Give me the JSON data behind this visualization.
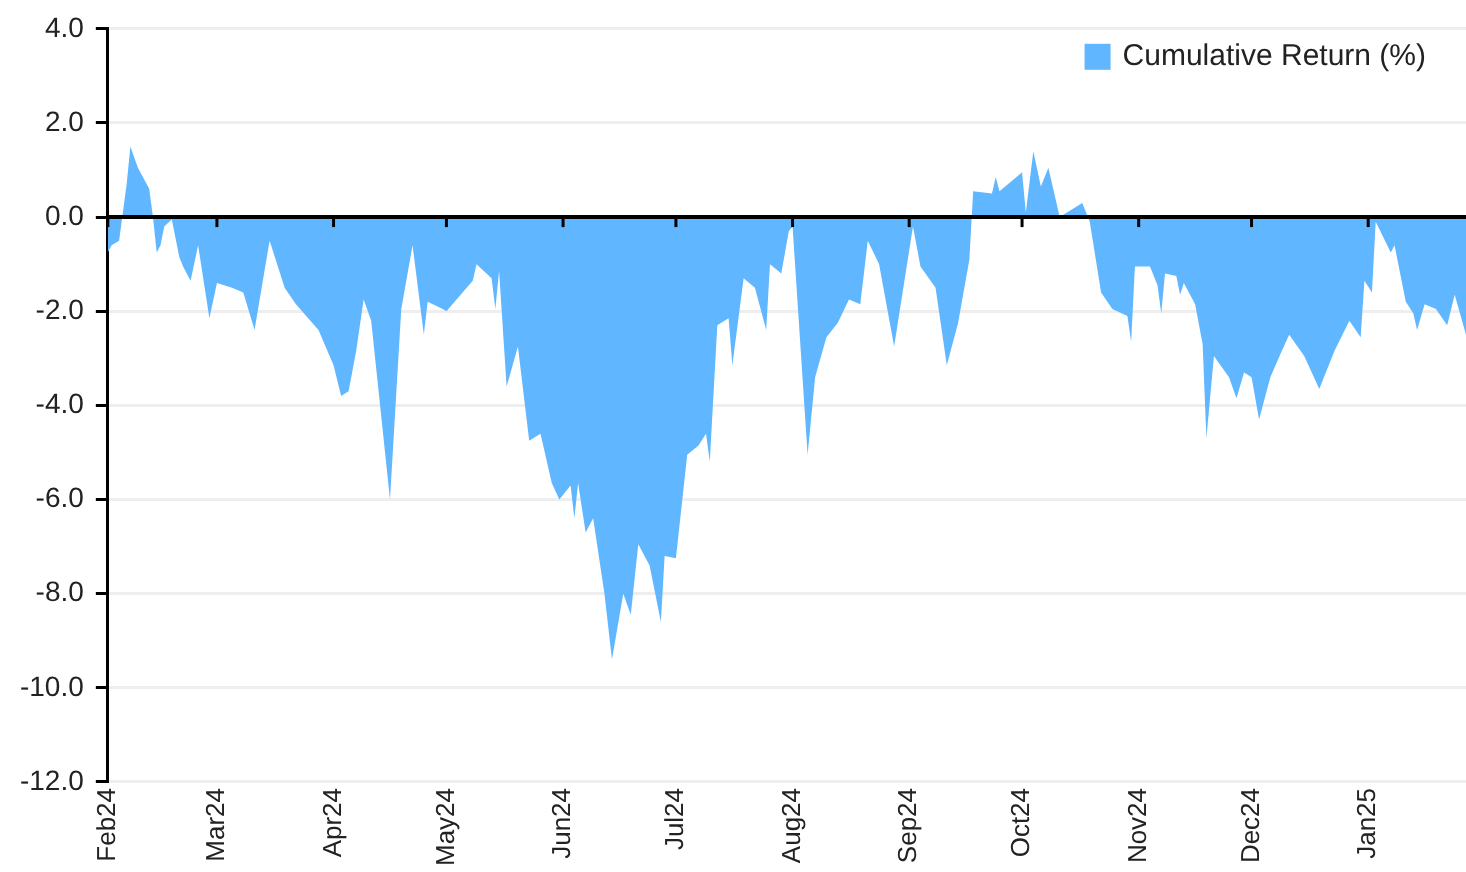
{
  "chart_data": {
    "type": "area",
    "legend": "top right",
    "grid": "y",
    "x": [
      "2024-02-01",
      "2024-02-02",
      "2024-02-04",
      "2024-02-06",
      "2024-02-07",
      "2024-02-09",
      "2024-02-12",
      "2024-02-13",
      "2024-02-14",
      "2024-02-15",
      "2024-02-16",
      "2024-02-18",
      "2024-02-20",
      "2024-02-21",
      "2024-02-23",
      "2024-02-25",
      "2024-02-28",
      "2024-03-01",
      "2024-03-05",
      "2024-03-08",
      "2024-03-11",
      "2024-03-15",
      "2024-03-19",
      "2024-03-22",
      "2024-03-28",
      "2024-04-01",
      "2024-04-03",
      "2024-04-05",
      "2024-04-07",
      "2024-04-09",
      "2024-04-11",
      "2024-04-16",
      "2024-04-19",
      "2024-04-22",
      "2024-04-25",
      "2024-04-26",
      "2024-04-30",
      "2024-05-01",
      "2024-05-08",
      "2024-05-09",
      "2024-05-13",
      "2024-05-14",
      "2024-05-15",
      "2024-05-17",
      "2024-05-20",
      "2024-05-23",
      "2024-05-26",
      "2024-05-29",
      "2024-05-31",
      "2024-06-03",
      "2024-06-04",
      "2024-06-05",
      "2024-06-07",
      "2024-06-09",
      "2024-06-12",
      "2024-06-14",
      "2024-06-17",
      "2024-06-19",
      "2024-06-21",
      "2024-06-24",
      "2024-06-27",
      "2024-06-28",
      "2024-07-01",
      "2024-07-04",
      "2024-07-07",
      "2024-07-09",
      "2024-07-10",
      "2024-07-12",
      "2024-07-15",
      "2024-07-16",
      "2024-07-19",
      "2024-07-22",
      "2024-07-25",
      "2024-07-26",
      "2024-07-29",
      "2024-07-31",
      "2024-08-01",
      "2024-08-05",
      "2024-08-07",
      "2024-08-10",
      "2024-08-13",
      "2024-08-16",
      "2024-08-19",
      "2024-08-21",
      "2024-08-24",
      "2024-08-28",
      "2024-09-02",
      "2024-09-04",
      "2024-09-08",
      "2024-09-11",
      "2024-09-14",
      "2024-09-17",
      "2024-09-18",
      "2024-09-23",
      "2024-09-24",
      "2024-09-25",
      "2024-10-01",
      "2024-10-02",
      "2024-10-04",
      "2024-10-06",
      "2024-10-08",
      "2024-10-11",
      "2024-10-17",
      "2024-10-19",
      "2024-10-22",
      "2024-10-25",
      "2024-10-29",
      "2024-10-30",
      "2024-10-31",
      "2024-11-04",
      "2024-11-06",
      "2024-11-07",
      "2024-11-08",
      "2024-11-11",
      "2024-11-12",
      "2024-11-13",
      "2024-11-16",
      "2024-11-18",
      "2024-11-19",
      "2024-11-21",
      "2024-11-25",
      "2024-11-27",
      "2024-11-29",
      "2024-12-01",
      "2024-12-03",
      "2024-12-06",
      "2024-12-09",
      "2024-12-11",
      "2024-12-15",
      "2024-12-19",
      "2024-12-23",
      "2024-12-27",
      "2024-12-30",
      "2024-12-31",
      "2025-01-02",
      "2025-01-03",
      "2025-01-07",
      "2025-01-08",
      "2025-01-11",
      "2025-01-13",
      "2025-01-14",
      "2025-01-16",
      "2025-01-19",
      "2025-01-22",
      "2025-01-24",
      "2025-01-27"
    ],
    "series": [
      {
        "name": "Cumulative Return (%)",
        "color": "#61b7ff",
        "values": [
          -0.75,
          -0.6,
          -0.5,
          0.7,
          1.5,
          1.05,
          0.6,
          0,
          -0.75,
          -0.6,
          -0.2,
          -0.05,
          -0.85,
          -1.05,
          -1.35,
          -0.6,
          -2.15,
          -1.4,
          -1.5,
          -1.6,
          -2.4,
          -0.5,
          -1.5,
          -1.85,
          -2.4,
          -3.15,
          -3.8,
          -3.7,
          -2.85,
          -1.75,
          -2.2,
          -6.0,
          -1.95,
          -0.6,
          -2.5,
          -1.8,
          -1.95,
          -2.0,
          -1.35,
          -1.0,
          -1.3,
          -1.95,
          -1.15,
          -3.6,
          -2.75,
          -4.75,
          -4.6,
          -5.65,
          -6.0,
          -5.7,
          -6.4,
          -5.65,
          -6.7,
          -6.4,
          -8.0,
          -9.4,
          -8.0,
          -8.45,
          -6.95,
          -7.4,
          -8.6,
          -7.2,
          -7.25,
          -5.05,
          -4.85,
          -4.6,
          -5.2,
          -2.3,
          -2.15,
          -3.15,
          -1.3,
          -1.5,
          -2.4,
          -1.0,
          -1.2,
          -0.3,
          -0.2,
          -5.05,
          -3.4,
          -2.55,
          -2.25,
          -1.75,
          -1.85,
          -0.5,
          -1.0,
          -2.75,
          -0.2,
          -1.05,
          -1.5,
          -3.15,
          -2.25,
          -0.9,
          0.55,
          0.5,
          0.85,
          0.55,
          0.95,
          0.1,
          1.4,
          0.65,
          1.05,
          0,
          0.3,
          -0.1,
          -1.6,
          -1.95,
          -2.1,
          -2.65,
          -1.05,
          -1.05,
          -1.45,
          -2.05,
          -1.2,
          -1.25,
          -1.65,
          -1.4,
          -1.85,
          -2.7,
          -4.7,
          -2.95,
          -3.4,
          -3.85,
          -3.3,
          -3.4,
          -4.3,
          -3.4,
          -2.85,
          -2.5,
          -2.95,
          -3.65,
          -2.85,
          -2.2,
          -2.55,
          -1.35,
          -1.6,
          -0.1,
          -0.75,
          -0.6,
          -1.8,
          -2.05,
          -2.4,
          -1.85,
          -1.95,
          -2.3,
          -1.65,
          -2.5
        ]
      }
    ],
    "xlim": [
      "2024-02-01",
      "2025-01-27"
    ],
    "xticks": [
      {
        "value": "2024-02-01",
        "label": "Feb24"
      },
      {
        "value": "2024-03-01",
        "label": "Mar24"
      },
      {
        "value": "2024-04-01",
        "label": "Apr24"
      },
      {
        "value": "2024-05-01",
        "label": "May24"
      },
      {
        "value": "2024-06-01",
        "label": "Jun24"
      },
      {
        "value": "2024-07-01",
        "label": "Jul24"
      },
      {
        "value": "2024-08-01",
        "label": "Aug24"
      },
      {
        "value": "2024-09-01",
        "label": "Sep24"
      },
      {
        "value": "2024-10-01",
        "label": "Oct24"
      },
      {
        "value": "2024-11-01",
        "label": "Nov24"
      },
      {
        "value": "2024-12-01",
        "label": "Dec24"
      },
      {
        "value": "2025-01-01",
        "label": "Jan25"
      }
    ],
    "ylim": [
      -12,
      4
    ],
    "yticks": [
      {
        "value": 4,
        "label": "4.0"
      },
      {
        "value": 2,
        "label": "2.0"
      },
      {
        "value": 0,
        "label": "0.0"
      },
      {
        "value": -2,
        "label": "-2.0"
      },
      {
        "value": -4,
        "label": "-4.0"
      },
      {
        "value": -6,
        "label": "-6.0"
      },
      {
        "value": -8,
        "label": "-8.0"
      },
      {
        "value": -10,
        "label": "-10.0"
      },
      {
        "value": -12,
        "label": "-12.0"
      }
    ]
  }
}
